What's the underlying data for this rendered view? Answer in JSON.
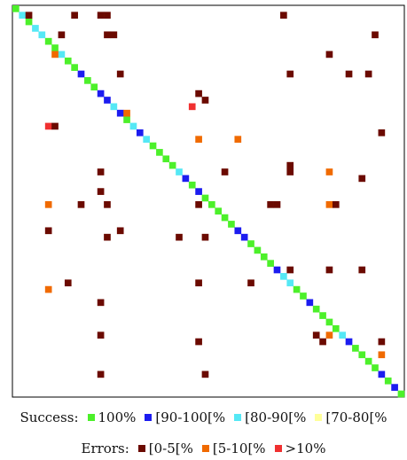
{
  "chart_data": {
    "type": "matrix",
    "diagonal": [
      0,
      2,
      0,
      2,
      2,
      0,
      0,
      2,
      0,
      0,
      1,
      0,
      0,
      1,
      1,
      2,
      1,
      0,
      2,
      1,
      2,
      0,
      0,
      0,
      0,
      2,
      1,
      0,
      1,
      0,
      0,
      0,
      0,
      0,
      1,
      1,
      0,
      0,
      0,
      0,
      1,
      2,
      2,
      0,
      0,
      1,
      0,
      0,
      0,
      0,
      2,
      1,
      0,
      0,
      0,
      0,
      1,
      0,
      1,
      0
    ],
    "errors": [
      [
        1,
        2,
        0
      ],
      [
        1,
        9,
        0
      ],
      [
        1,
        13,
        0
      ],
      [
        1,
        14,
        0
      ],
      [
        1,
        41,
        0
      ],
      [
        4,
        7,
        0
      ],
      [
        4,
        14,
        0
      ],
      [
        4,
        15,
        0
      ],
      [
        4,
        55,
        0
      ],
      [
        7,
        6,
        1
      ],
      [
        7,
        48,
        0
      ],
      [
        10,
        16,
        0
      ],
      [
        10,
        42,
        0
      ],
      [
        10,
        51,
        0
      ],
      [
        10,
        54,
        0
      ],
      [
        13,
        28,
        0
      ],
      [
        14,
        29,
        0
      ],
      [
        15,
        27,
        2
      ],
      [
        16,
        17,
        1
      ],
      [
        18,
        5,
        2
      ],
      [
        18,
        6,
        0
      ],
      [
        19,
        56,
        0
      ],
      [
        20,
        28,
        1
      ],
      [
        20,
        34,
        1
      ],
      [
        24,
        42,
        0
      ],
      [
        25,
        42,
        0
      ],
      [
        25,
        13,
        0
      ],
      [
        25,
        32,
        0
      ],
      [
        25,
        48,
        1
      ],
      [
        26,
        53,
        0
      ],
      [
        28,
        13,
        0
      ],
      [
        30,
        5,
        1
      ],
      [
        30,
        10,
        0
      ],
      [
        30,
        14,
        0
      ],
      [
        30,
        28,
        0
      ],
      [
        30,
        39,
        0
      ],
      [
        30,
        40,
        0
      ],
      [
        30,
        48,
        1
      ],
      [
        30,
        49,
        0
      ],
      [
        34,
        5,
        0
      ],
      [
        34,
        16,
        0
      ],
      [
        35,
        14,
        0
      ],
      [
        35,
        25,
        0
      ],
      [
        35,
        29,
        0
      ],
      [
        40,
        42,
        0
      ],
      [
        40,
        48,
        0
      ],
      [
        40,
        53,
        0
      ],
      [
        42,
        8,
        0
      ],
      [
        42,
        28,
        0
      ],
      [
        42,
        36,
        0
      ],
      [
        43,
        5,
        1
      ],
      [
        45,
        13,
        0
      ],
      [
        50,
        13,
        0
      ],
      [
        50,
        46,
        0
      ],
      [
        51,
        47,
        0
      ],
      [
        50,
        48,
        1
      ],
      [
        51,
        28,
        0
      ],
      [
        51,
        56,
        0
      ],
      [
        53,
        56,
        1
      ],
      [
        56,
        13,
        0
      ],
      [
        56,
        29,
        0
      ]
    ],
    "success_title": "Success:",
    "success_bins": [
      {
        "label": "100%",
        "color": "#4cf02a"
      },
      {
        "label": "[90-100[%",
        "color": "#1c1cf0"
      },
      {
        "label": "[80-90[%",
        "color": "#55e8f5"
      },
      {
        "label": "[70-80[%",
        "color": "#ffff99"
      }
    ],
    "error_title": "Errors:",
    "error_bins": [
      {
        "label": "[0-5[%",
        "color": "#6b0a00"
      },
      {
        "label": "[5-10[%",
        "color": "#f06a00"
      },
      {
        "label": ">10%",
        "color": "#f03030"
      }
    ]
  }
}
